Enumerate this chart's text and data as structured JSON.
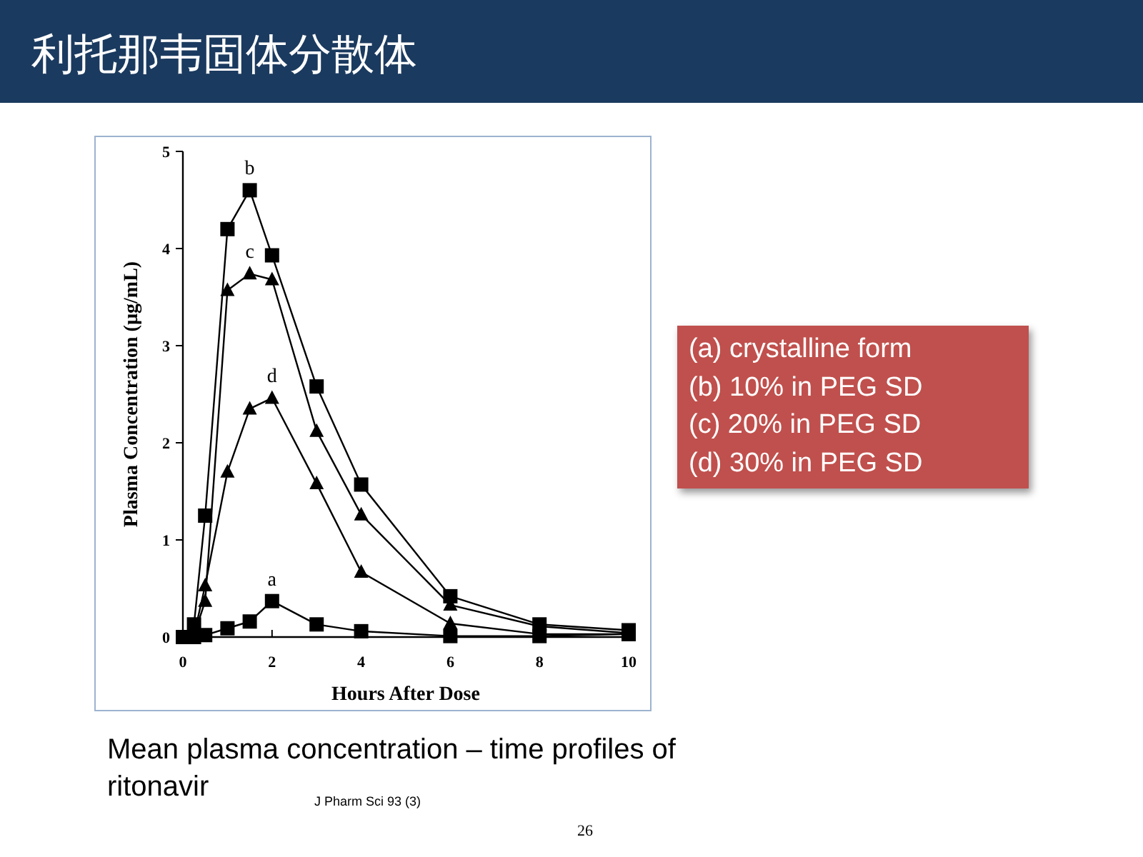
{
  "chart_data": {
    "type": "line",
    "title": "利托那韦固体分散体",
    "xlabel": "Hours After Dose",
    "ylabel": "Plasma Concentration (µg/mL)",
    "x": [
      0,
      0.25,
      0.5,
      1,
      1.5,
      2,
      3,
      4,
      6,
      8,
      10
    ],
    "xlim": [
      0,
      10
    ],
    "xticks": [
      0,
      2,
      4,
      6,
      8,
      10
    ],
    "ylim": [
      0,
      5
    ],
    "yticks": [
      0,
      1,
      2,
      3,
      4,
      5
    ],
    "grid": false,
    "line_style": "solid",
    "series": [
      {
        "name": "a",
        "color": "#000000",
        "marker": "square",
        "values": [
          0,
          0,
          0.02,
          0.09,
          0.16,
          0.37,
          0.13,
          0.06,
          0.01,
          0.01,
          0.03
        ]
      },
      {
        "name": "b",
        "color": "#000000",
        "marker": "square",
        "values": [
          0,
          0.13,
          1.25,
          4.2,
          4.6,
          3.93,
          2.58,
          1.57,
          0.42,
          0.13,
          0.07
        ]
      },
      {
        "name": "c",
        "color": "#000000",
        "marker": "triangle",
        "values": [
          0,
          0.02,
          0.37,
          3.57,
          3.74,
          3.68,
          2.12,
          1.26,
          0.33,
          0.11,
          0.04
        ]
      },
      {
        "name": "d",
        "color": "#000000",
        "marker": "triangle",
        "values": [
          0,
          0.02,
          0.53,
          1.7,
          2.35,
          2.46,
          1.58,
          0.67,
          0.14,
          0.03,
          0.03
        ]
      }
    ],
    "annotations": [
      "(a) crystalline form",
      "(b) 10% in PEG SD",
      "(c) 20% in PEG SD",
      "(d) 30% in PEG SD",
      "Mean plasma concentration – time profiles of ritonavir",
      "J Pharm Sci 93 (3)",
      "26"
    ]
  }
}
